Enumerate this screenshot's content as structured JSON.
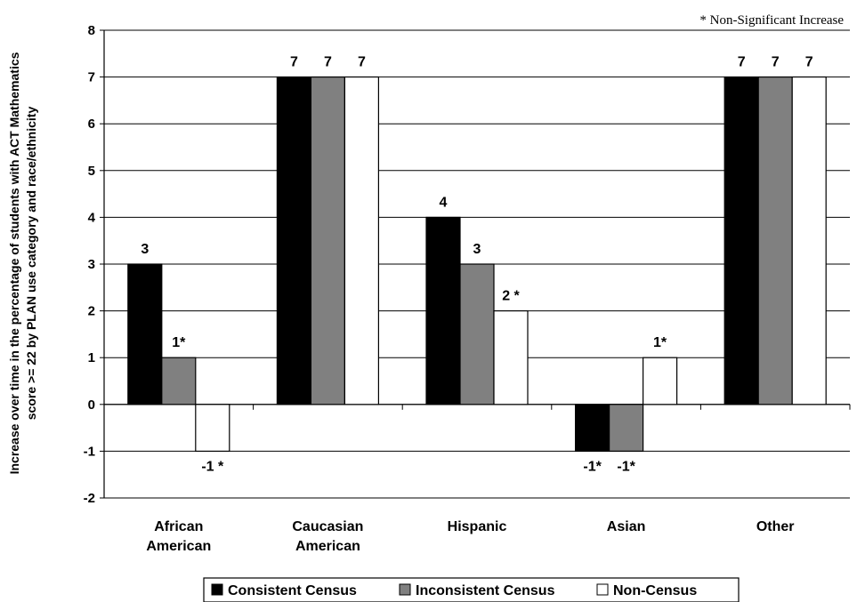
{
  "chart_data": {
    "type": "bar",
    "title": "",
    "note": "* Non-Significant Increase",
    "ylabel": "Increase over time in the percentage of students with ACT Mathematics score >= 22 by PLAN use category and race/ethnicity",
    "ylabel_lines": [
      "Increase over time in the percentage of students with ACT Mathematics",
      "score >= 22 by PLAN use category and race/ethnicity"
    ],
    "xlabel": "",
    "ylim": [
      -2,
      8
    ],
    "yticks": [
      -2,
      -1,
      0,
      1,
      2,
      3,
      4,
      5,
      6,
      7,
      8
    ],
    "grid": true,
    "legend_position": "bottom",
    "categories": [
      "African American",
      "Caucasian American",
      "Hispanic",
      "Asian",
      "Other"
    ],
    "category_lines": [
      [
        "African",
        "American"
      ],
      [
        "Caucasian",
        "American"
      ],
      [
        "Hispanic"
      ],
      [
        "Asian"
      ],
      [
        "Other"
      ]
    ],
    "series": [
      {
        "name": "Consistent Census",
        "color": "#000000",
        "values": [
          3,
          7,
          4,
          -1,
          7
        ],
        "labels": [
          "3",
          "7",
          "4",
          "-1*",
          "7"
        ]
      },
      {
        "name": "Inconsistent Census",
        "color": "#808080",
        "values": [
          1,
          7,
          3,
          -1,
          7
        ],
        "labels": [
          "1*",
          "7",
          "3",
          "-1*",
          "7"
        ]
      },
      {
        "name": "Non-Census",
        "color": "#ffffff",
        "values": [
          -1,
          7,
          2,
          1,
          7
        ],
        "labels": [
          "-1 *",
          "7",
          "2 *",
          "1*",
          "7"
        ]
      }
    ]
  }
}
